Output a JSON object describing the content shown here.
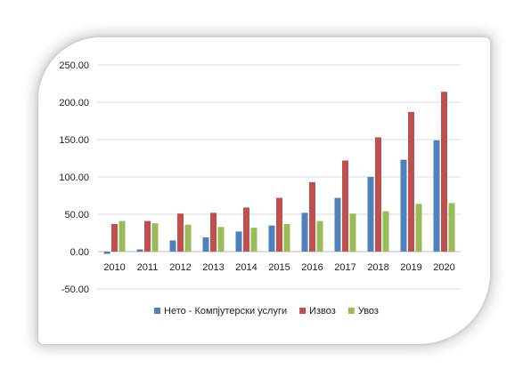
{
  "chart_data": {
    "type": "bar",
    "categories": [
      "2010",
      "2011",
      "2012",
      "2013",
      "2014",
      "2015",
      "2016",
      "2017",
      "2018",
      "2019",
      "2020"
    ],
    "series": [
      {
        "name": "Нето -  Компјутерски услуги",
        "color": "#4F81BD",
        "values": [
          -3,
          3,
          15,
          19,
          27,
          35,
          52,
          72,
          100,
          123,
          149
        ]
      },
      {
        "name": "Извоз",
        "color": "#C0504D",
        "values": [
          37,
          41,
          51,
          52,
          59,
          72,
          93,
          122,
          153,
          187,
          214
        ]
      },
      {
        "name": "Увоз",
        "color": "#9BBB59",
        "values": [
          41,
          38,
          36,
          33,
          32,
          37,
          41,
          51,
          54,
          64,
          65
        ]
      }
    ],
    "y_ticks": [
      "-50.00",
      "0.00",
      "50.00",
      "100.00",
      "150.00",
      "200.00",
      "250.00"
    ],
    "y_tick_values": [
      -50,
      0,
      50,
      100,
      150,
      200,
      250
    ],
    "ylim": [
      -50,
      250
    ],
    "grid": true,
    "legend_position": "bottom"
  }
}
